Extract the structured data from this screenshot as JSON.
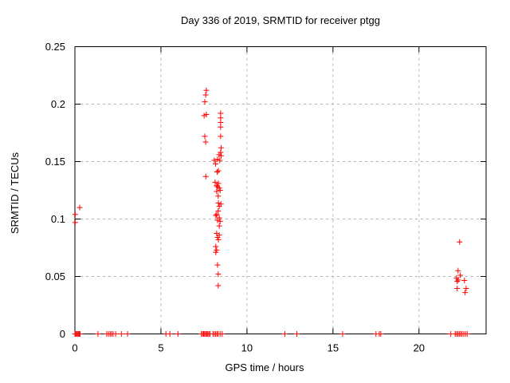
{
  "chart_data": {
    "type": "scatter",
    "title": "Day 336 of 2019, SRMTID for receiver ptgg",
    "xlabel": "GPS time / hours",
    "ylabel": "SRMTID / TECUs",
    "xlim": [
      0,
      23.9
    ],
    "ylim": [
      0,
      0.25
    ],
    "xticks": [
      0,
      5,
      10,
      15,
      20
    ],
    "xtick_labels": [
      "0",
      "5",
      "10",
      "15",
      "20"
    ],
    "yticks": [
      0,
      0.05,
      0.1,
      0.15,
      0.2,
      0.25
    ],
    "ytick_labels": [
      "0",
      "0.05",
      "0.1",
      "0.15",
      "0.2",
      "0.25"
    ],
    "grid": true,
    "legend_position": "none",
    "marker": {
      "shape": "plus",
      "size": 7
    },
    "colors": {
      "marker": "#ff0000",
      "grid": "#b3b3b3",
      "axis": "#000000",
      "background": "#ffffff"
    },
    "series": [
      {
        "name": "srmtid",
        "points": [
          [
            0.28,
            0.11
          ],
          [
            0.02,
            0.104
          ],
          [
            0.02,
            0.097
          ],
          [
            7.64,
            0.212
          ],
          [
            7.6,
            0.208
          ],
          [
            7.55,
            0.202
          ],
          [
            7.51,
            0.19
          ],
          [
            7.64,
            0.191
          ],
          [
            8.47,
            0.192
          ],
          [
            8.47,
            0.188
          ],
          [
            8.47,
            0.184
          ],
          [
            8.47,
            0.18
          ],
          [
            8.47,
            0.172
          ],
          [
            7.55,
            0.172
          ],
          [
            7.6,
            0.167
          ],
          [
            8.5,
            0.162
          ],
          [
            8.47,
            0.158
          ],
          [
            8.38,
            0.156
          ],
          [
            8.5,
            0.155
          ],
          [
            8.29,
            0.152
          ],
          [
            8.42,
            0.151
          ],
          [
            8.1,
            0.151
          ],
          [
            8.18,
            0.148
          ],
          [
            8.27,
            0.141
          ],
          [
            8.34,
            0.142
          ],
          [
            7.61,
            0.137
          ],
          [
            8.15,
            0.132
          ],
          [
            8.34,
            0.131
          ],
          [
            8.24,
            0.129
          ],
          [
            8.29,
            0.128
          ],
          [
            8.39,
            0.127
          ],
          [
            8.24,
            0.124
          ],
          [
            8.44,
            0.125
          ],
          [
            8.33,
            0.12
          ],
          [
            8.34,
            0.114
          ],
          [
            8.49,
            0.113
          ],
          [
            8.39,
            0.111
          ],
          [
            8.33,
            0.107
          ],
          [
            8.24,
            0.104
          ],
          [
            8.19,
            0.103
          ],
          [
            8.39,
            0.101
          ],
          [
            8.29,
            0.099
          ],
          [
            8.44,
            0.098
          ],
          [
            8.39,
            0.094
          ],
          [
            8.24,
            0.0875
          ],
          [
            8.39,
            0.086
          ],
          [
            8.29,
            0.084
          ],
          [
            8.34,
            0.082
          ],
          [
            8.19,
            0.076
          ],
          [
            8.24,
            0.073
          ],
          [
            8.19,
            0.071
          ],
          [
            8.29,
            0.06
          ],
          [
            8.33,
            0.052
          ],
          [
            8.33,
            0.042
          ],
          [
            22.36,
            0.08
          ],
          [
            22.27,
            0.055
          ],
          [
            22.4,
            0.051
          ],
          [
            22.18,
            0.0487
          ],
          [
            22.28,
            0.047
          ],
          [
            22.64,
            0.0465
          ],
          [
            22.22,
            0.0458
          ],
          [
            22.22,
            0.0396
          ],
          [
            22.74,
            0.0396
          ],
          [
            22.68,
            0.036
          ],
          [
            0.0,
            0
          ],
          [
            0.05,
            0
          ],
          [
            0.1,
            0
          ],
          [
            0.15,
            0
          ],
          [
            0.2,
            0
          ],
          [
            0.25,
            0
          ],
          [
            0.3,
            0
          ],
          [
            1.34,
            0
          ],
          [
            1.85,
            0
          ],
          [
            1.95,
            0
          ],
          [
            2.05,
            0
          ],
          [
            2.13,
            0
          ],
          [
            2.22,
            0
          ],
          [
            2.37,
            0
          ],
          [
            2.7,
            0
          ],
          [
            3.06,
            0
          ],
          [
            5.29,
            0
          ],
          [
            5.52,
            0
          ],
          [
            5.99,
            0
          ],
          [
            7.35,
            0
          ],
          [
            7.42,
            0
          ],
          [
            7.48,
            0
          ],
          [
            7.54,
            0
          ],
          [
            7.6,
            0
          ],
          [
            7.66,
            0
          ],
          [
            7.72,
            0
          ],
          [
            7.78,
            0
          ],
          [
            7.85,
            0
          ],
          [
            8.02,
            0
          ],
          [
            8.1,
            0
          ],
          [
            8.18,
            0
          ],
          [
            8.26,
            0
          ],
          [
            8.33,
            0
          ],
          [
            8.44,
            0
          ],
          [
            8.56,
            0
          ],
          [
            12.2,
            0
          ],
          [
            12.9,
            0
          ],
          [
            15.56,
            0
          ],
          [
            17.5,
            0
          ],
          [
            17.69,
            0
          ],
          [
            17.78,
            0
          ],
          [
            21.85,
            0
          ],
          [
            22.1,
            0
          ],
          [
            22.18,
            0
          ],
          [
            22.26,
            0
          ],
          [
            22.34,
            0
          ],
          [
            22.42,
            0
          ],
          [
            22.5,
            0
          ],
          [
            22.6,
            0
          ],
          [
            22.7,
            0
          ],
          [
            22.8,
            0
          ]
        ]
      }
    ]
  }
}
